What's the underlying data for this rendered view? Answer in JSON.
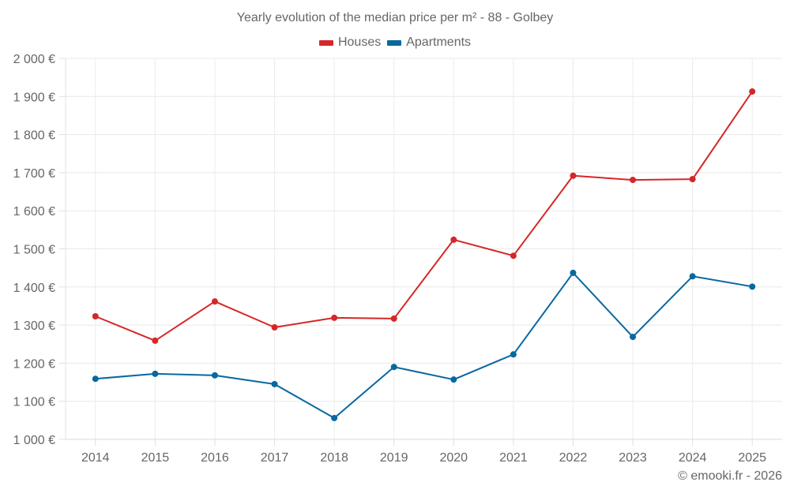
{
  "chart_data": {
    "type": "line",
    "title": "Yearly evolution of the median price per m² - 88 - Golbey",
    "xlabel": "",
    "ylabel": "",
    "categories": [
      "2014",
      "2015",
      "2016",
      "2017",
      "2018",
      "2019",
      "2020",
      "2021",
      "2022",
      "2023",
      "2024",
      "2025"
    ],
    "series": [
      {
        "name": "Houses",
        "color": "#d62728",
        "values": [
          1323,
          1259,
          1362,
          1294,
          1319,
          1317,
          1524,
          1482,
          1692,
          1681,
          1683,
          1913
        ]
      },
      {
        "name": "Apartments",
        "color": "#0868a0",
        "values": [
          1159,
          1172,
          1168,
          1145,
          1056,
          1190,
          1157,
          1223,
          1437,
          1269,
          1428,
          1401
        ]
      }
    ],
    "ylim": [
      1000,
      2000
    ],
    "yticks": [
      1000,
      1100,
      1200,
      1300,
      1400,
      1500,
      1600,
      1700,
      1800,
      1900,
      2000
    ],
    "ytick_labels": [
      "1 000 €",
      "1 100 €",
      "1 200 €",
      "1 300 €",
      "1 400 €",
      "1 500 €",
      "1 600 €",
      "1 700 €",
      "1 800 €",
      "1 900 €",
      "2 000 €"
    ],
    "grid": true,
    "legend_position": "top"
  },
  "header": {
    "title": "Yearly evolution of the median price per m² - 88 - Golbey"
  },
  "legend": {
    "items": [
      {
        "label": "Houses",
        "color": "#d62728"
      },
      {
        "label": "Apartments",
        "color": "#0868a0"
      }
    ]
  },
  "footer": {
    "credit": "© emooki.fr - 2026"
  }
}
